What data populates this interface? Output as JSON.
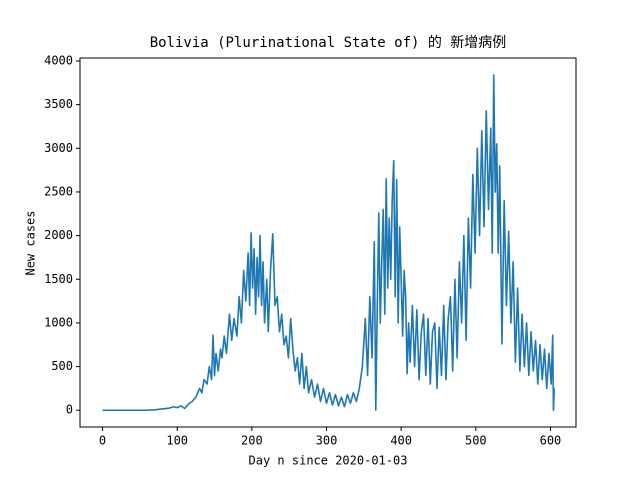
{
  "chart_data": {
    "type": "line",
    "title": "Bolivia (Plurinational State of) 的 新增病例",
    "x_label": "Day n since 2020-01-03",
    "y_label": "New cases",
    "xlim": [
      -30.2,
      634.2
    ],
    "ylim": [
      -192,
      4034
    ],
    "xticks": [
      0,
      100,
      200,
      300,
      400,
      500,
      600
    ],
    "yticks": [
      0,
      500,
      1000,
      1500,
      2000,
      2500,
      3000,
      3500,
      4000
    ],
    "grid": false,
    "series": [
      {
        "name": "New cases",
        "color": "#1f77b4",
        "x": [
          0,
          20,
          40,
          60,
          70,
          80,
          90,
          95,
          100,
          105,
          110,
          115,
          120,
          125,
          130,
          133,
          136,
          140,
          143,
          146,
          148,
          150,
          152,
          155,
          158,
          160,
          163,
          166,
          170,
          173,
          176,
          180,
          183,
          186,
          189,
          192,
          195,
          197,
          199,
          201,
          203,
          205,
          207,
          209,
          211,
          213,
          215,
          217,
          220,
          222,
          225,
          228,
          231,
          234,
          237,
          240,
          243,
          246,
          249,
          252,
          255,
          258,
          261,
          264,
          267,
          270,
          273,
          276,
          280,
          284,
          288,
          292,
          296,
          300,
          304,
          308,
          312,
          316,
          320,
          324,
          328,
          332,
          336,
          340,
          344,
          348,
          352,
          355,
          358,
          361,
          364,
          366,
          368,
          370,
          372,
          374,
          376,
          378,
          380,
          382,
          384,
          386,
          388,
          390,
          392,
          394,
          396,
          398,
          400,
          402,
          404,
          406,
          408,
          410,
          412,
          415,
          418,
          421,
          424,
          427,
          430,
          433,
          436,
          439,
          442,
          445,
          448,
          451,
          454,
          457,
          460,
          463,
          466,
          469,
          472,
          475,
          478,
          481,
          484,
          487,
          490,
          493,
          496,
          499,
          502,
          505,
          508,
          511,
          514,
          517,
          520,
          522,
          524,
          526,
          528,
          530,
          532,
          535,
          538,
          541,
          544,
          547,
          550,
          553,
          556,
          559,
          562,
          565,
          568,
          571,
          574,
          577,
          580,
          583,
          586,
          589,
          592,
          595,
          598,
          601,
          603,
          604,
          605
        ],
        "values": [
          0,
          0,
          0,
          0,
          5,
          15,
          25,
          40,
          30,
          50,
          20,
          70,
          100,
          150,
          250,
          200,
          350,
          300,
          500,
          350,
          860,
          400,
          650,
          450,
          700,
          600,
          850,
          650,
          1100,
          800,
          1050,
          850,
          1300,
          1000,
          1600,
          1250,
          1800,
          1200,
          2030,
          1400,
          1850,
          1100,
          1750,
          1300,
          2000,
          1200,
          1700,
          1000,
          1500,
          900,
          1600,
          2020,
          1200,
          1300,
          900,
          1100,
          750,
          850,
          600,
          1050,
          700,
          450,
          600,
          300,
          650,
          250,
          500,
          200,
          350,
          150,
          300,
          100,
          250,
          80,
          200,
          60,
          180,
          50,
          150,
          40,
          180,
          80,
          200,
          100,
          250,
          500,
          1050,
          400,
          1300,
          600,
          1930,
          0,
          1200,
          2260,
          1000,
          1700,
          2300,
          1100,
          2650,
          1400,
          2200,
          1500,
          2400,
          2860,
          1300,
          2640,
          1000,
          2100,
          1500,
          850,
          1600,
          1300,
          420,
          1000,
          550,
          1200,
          500,
          1150,
          350,
          900,
          1100,
          400,
          1050,
          300,
          900,
          1000,
          250,
          950,
          400,
          1200,
          350,
          1050,
          1300,
          450,
          1500,
          600,
          1700,
          1000,
          2000,
          800,
          2200,
          1400,
          2700,
          1800,
          3000,
          2000,
          3200,
          2100,
          3430,
          2300,
          3230,
          1800,
          3840,
          2500,
          3050,
          1800,
          2800,
          760,
          2400,
          1200,
          2050,
          1000,
          1700,
          550,
          1400,
          450,
          1100,
          500,
          1000,
          400,
          900,
          450,
          800,
          300,
          750,
          350,
          700,
          250,
          650,
          300,
          860,
          0,
          250
        ]
      }
    ]
  }
}
